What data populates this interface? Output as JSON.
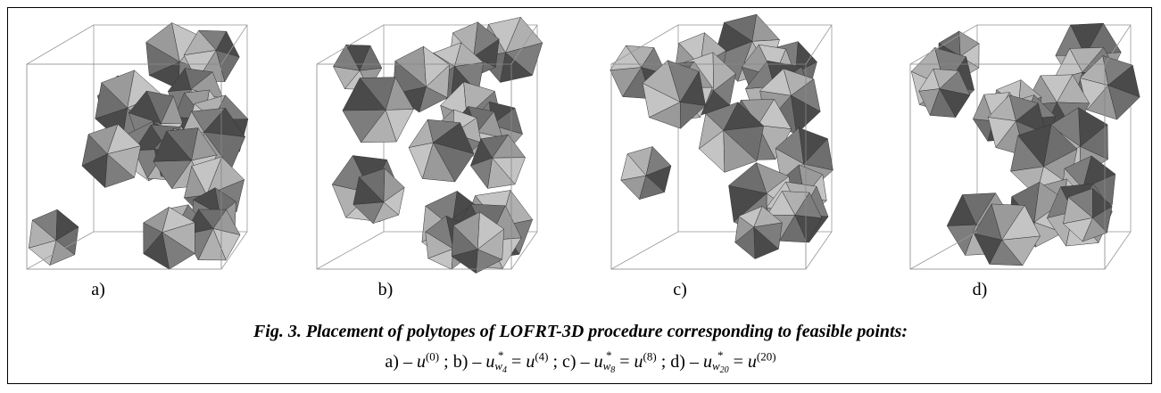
{
  "figure": {
    "panels": [
      {
        "label": "a)"
      },
      {
        "label": "b)"
      },
      {
        "label": "c)"
      },
      {
        "label": "d)"
      }
    ],
    "caption": {
      "title": "Fig. 3. Placement of polytopes of LOFRT-3D procedure corresponding to feasible points:",
      "separator": ";",
      "equals": "=",
      "items": [
        {
          "prefix": "a) –",
          "base": "u",
          "sup": "(0)"
        },
        {
          "prefix": "b) –",
          "base": "u",
          "sup": "*",
          "sub": "w",
          "subsub": "4",
          "rhs_base": "u",
          "rhs_sup": "(4)"
        },
        {
          "prefix": "c) –",
          "base": "u",
          "sup": "*",
          "sub": "w",
          "subsub": "8",
          "rhs_base": "u",
          "rhs_sup": "(8)"
        },
        {
          "prefix": "d) –",
          "base": "u",
          "sup": "*",
          "sub": "w",
          "subsub": "20",
          "rhs_base": "u",
          "rhs_sup": "(20)"
        }
      ]
    }
  }
}
